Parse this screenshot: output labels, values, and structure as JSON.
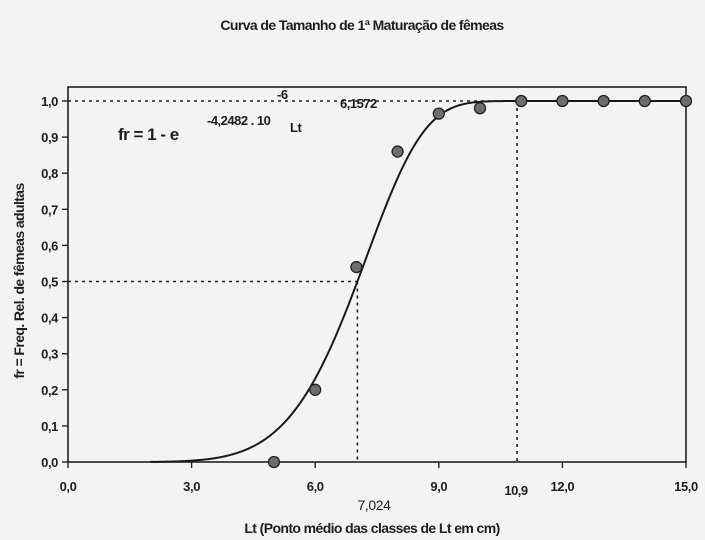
{
  "chart_data": {
    "type": "scatter",
    "title": "Curva de Tamanho de 1ª Maturação de fêmeas",
    "xlabel": "Lt (Ponto médio das classes de Lt em cm)",
    "ylabel": "fr = Freq. Rel. de fêmeas adultas",
    "xlim": [
      0,
      15
    ],
    "ylim": [
      0,
      1
    ],
    "xticks": [
      "0,0",
      "3,0",
      "6,0",
      "9,0",
      "12,0",
      "15,0"
    ],
    "yticks": [
      "0,0",
      "0,1",
      "0,2",
      "0,3",
      "0,4",
      "0,5",
      "0,6",
      "0,7",
      "0,8",
      "0,9",
      "1,0"
    ],
    "points": [
      {
        "x": 5,
        "y": 0.0
      },
      {
        "x": 6,
        "y": 0.2
      },
      {
        "x": 7,
        "y": 0.54
      },
      {
        "x": 8,
        "y": 0.86
      },
      {
        "x": 9,
        "y": 0.965
      },
      {
        "x": 10,
        "y": 0.98
      },
      {
        "x": 11,
        "y": 1.0
      },
      {
        "x": 12,
        "y": 1.0
      },
      {
        "x": 13,
        "y": 1.0
      },
      {
        "x": 14,
        "y": 1.0
      },
      {
        "x": 15,
        "y": 1.0
      }
    ],
    "curve": {
      "a": 4.2482e-06,
      "b": 6.1572
    },
    "equation": {
      "lhs": "fr = 1 - e",
      "coef": "-4,2482 . 10",
      "exp10": "-6",
      "var": "Lt",
      "power": "6,1572"
    },
    "reference_lines": [
      {
        "x": 7.024,
        "y": 0.5
      },
      {
        "x": 10.9,
        "y": 1.0
      }
    ],
    "annotations": {
      "l50": "7,024",
      "l100": "10,9"
    },
    "grid": false,
    "legend": "none"
  }
}
